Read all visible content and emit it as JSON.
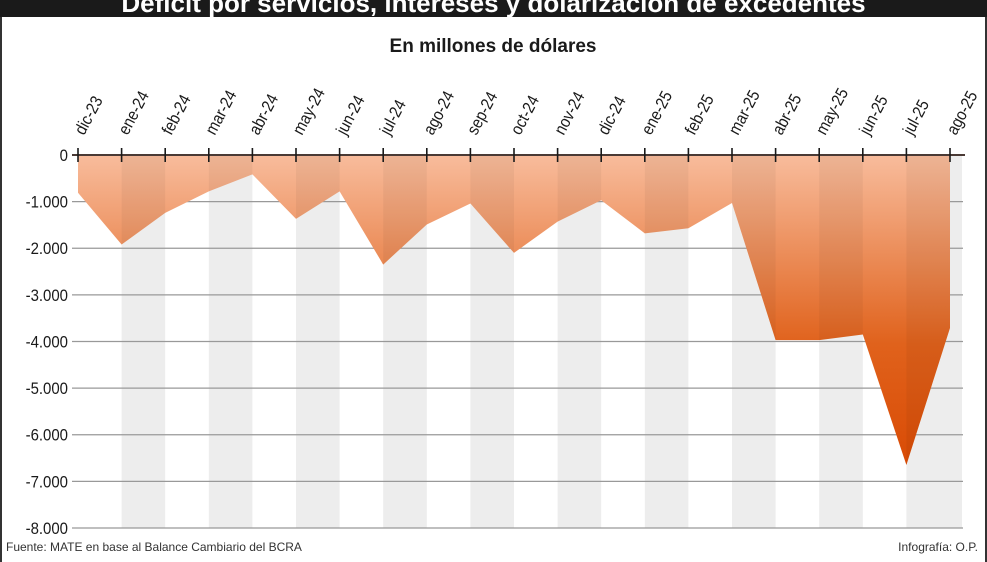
{
  "chart_data": {
    "type": "area",
    "title": "Déficit por servicios, intereses y dolarización de excedentes",
    "subtitle": "En millones de dólares",
    "categories": [
      "dic-23",
      "ene-24",
      "feb-24",
      "mar-24",
      "abr-24",
      "may-24",
      "jun-24",
      "jul-24",
      "ago-24",
      "sep-24",
      "oct-24",
      "nov-24",
      "dic-24",
      "ene-25",
      "feb-25",
      "mar-25",
      "abr-25",
      "may-25",
      "jun-25",
      "jul-25",
      "ago-25"
    ],
    "values": [
      -810,
      -1920,
      -1240,
      -780,
      -415,
      -1370,
      -780,
      -2350,
      -1490,
      -1040,
      -2100,
      -1430,
      -970,
      -1680,
      -1570,
      -1030,
      -3970,
      -3970,
      -3850,
      -6650,
      -3710
    ],
    "ylim": [
      -8000,
      0
    ],
    "yticks": [
      0,
      -1000,
      -2000,
      -3000,
      -4000,
      -5000,
      -6000,
      -7000,
      -8000
    ],
    "ytick_labels": [
      "0",
      "-1.000",
      "-2.000",
      "-3.000",
      "-4.000",
      "-5.000",
      "-6.000",
      "-7.000",
      "-8.000"
    ],
    "grid": true,
    "xlabel": "",
    "ylabel": "",
    "source": "Fuente: MATE en base al Balance Cambiario del BCRA",
    "credit": "Infografía: O.P.",
    "colors": {
      "fill_top": "#f8bc9c",
      "fill_bottom": "#d94a04",
      "stripe": "#ededed",
      "grid": "#999999",
      "axis": "#4a3a35"
    }
  }
}
